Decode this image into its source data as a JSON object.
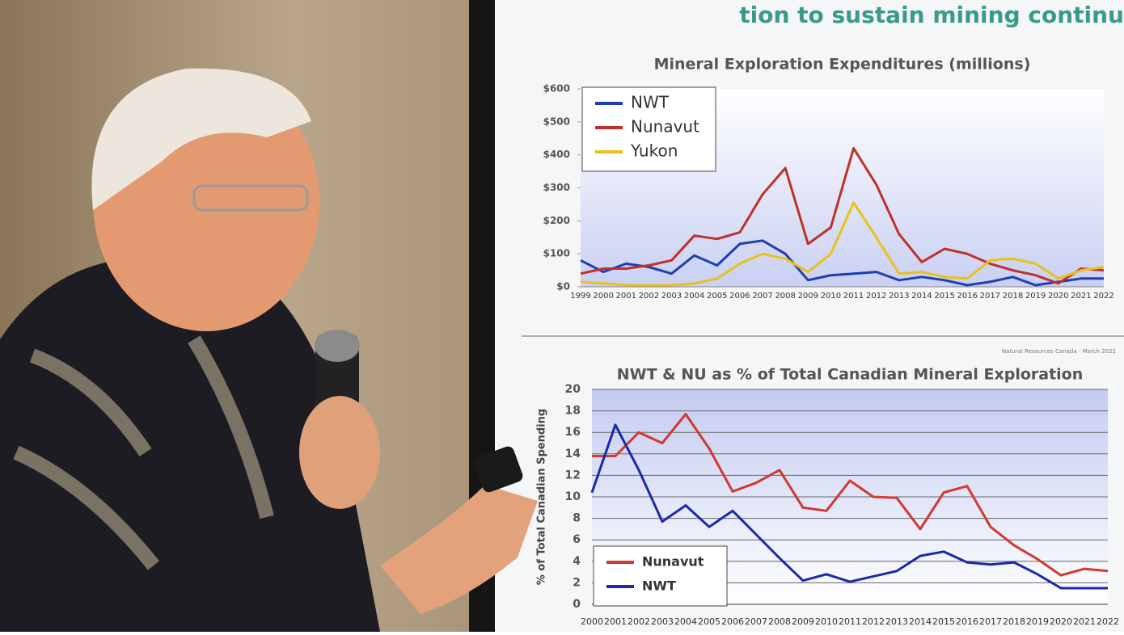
{
  "slide": {
    "heading": "tion to sustain mining continu",
    "source": "Natural Resources Canada - March 2022"
  },
  "chart_data": [
    {
      "type": "line",
      "title": "Mineral Exploration Expenditures (millions)",
      "categories": [
        "1999",
        "2000",
        "2001",
        "2002",
        "2003",
        "2004",
        "2005",
        "2006",
        "2007",
        "2008",
        "2009",
        "2010",
        "2011",
        "2012",
        "2013",
        "2014",
        "2015",
        "2016",
        "2017",
        "2018",
        "2019",
        "2020",
        "2021",
        "2022"
      ],
      "series": [
        {
          "name": "NWT",
          "color": "#1f3fb0",
          "values": [
            80,
            45,
            70,
            60,
            40,
            95,
            65,
            130,
            140,
            100,
            20,
            35,
            40,
            45,
            20,
            30,
            20,
            5,
            15,
            30,
            5,
            15,
            25,
            25
          ]
        },
        {
          "name": "Nunavut",
          "color": "#c0302a",
          "values": [
            40,
            55,
            55,
            65,
            80,
            155,
            145,
            165,
            280,
            360,
            130,
            180,
            420,
            310,
            160,
            75,
            115,
            100,
            70,
            50,
            35,
            10,
            55,
            50
          ]
        },
        {
          "name": "Yukon",
          "color": "#e8c21a",
          "values": [
            15,
            10,
            5,
            5,
            5,
            10,
            25,
            70,
            100,
            85,
            45,
            100,
            255,
            150,
            40,
            45,
            30,
            25,
            80,
            85,
            70,
            25,
            50,
            60
          ]
        }
      ],
      "ylim": [
        0,
        600
      ],
      "yticks": [
        {
          "value": 0,
          "label": "$0"
        },
        {
          "value": 100,
          "label": "$100"
        },
        {
          "value": 200,
          "label": "$200"
        },
        {
          "value": 300,
          "label": "$300"
        },
        {
          "value": 400,
          "label": "$400"
        },
        {
          "value": 500,
          "label": "$500"
        },
        {
          "value": 600,
          "label": "$600"
        }
      ],
      "grid": false,
      "legend": "upper left"
    },
    {
      "type": "line",
      "title": "NWT & NU as % of Total Canadian Mineral Exploration",
      "y_label": "% of Total Canadian Spending",
      "categories": [
        "2000",
        "2001",
        "2002",
        "2003",
        "2004",
        "2005",
        "2006",
        "2007",
        "2008",
        "2009",
        "2010",
        "2011",
        "2012",
        "2013",
        "2014",
        "2015",
        "2016",
        "2017",
        "2018",
        "2019",
        "2020",
        "2021",
        "2022"
      ],
      "series": [
        {
          "name": "Nunavut",
          "color": "#d03a30",
          "values": [
            13.8,
            13.8,
            16,
            15,
            17.7,
            14.5,
            10.5,
            11.3,
            12.5,
            9,
            8.7,
            11.5,
            10,
            9.9,
            7,
            10.4,
            11,
            7.2,
            5.5,
            4.2,
            2.7,
            3.3,
            3.1
          ]
        },
        {
          "name": "NWT",
          "color": "#1a2aa8",
          "values": [
            10.4,
            16.7,
            12.5,
            7.7,
            9.2,
            7.2,
            8.7,
            6.5,
            4.3,
            2.2,
            2.8,
            2.1,
            2.6,
            3.1,
            4.5,
            4.9,
            3.9,
            3.7,
            3.9,
            2.8,
            1.5,
            1.5,
            1.5
          ]
        }
      ],
      "ylim": [
        0,
        20
      ],
      "yticks": [
        0,
        2,
        4,
        6,
        8,
        10,
        12,
        14,
        16,
        18,
        20
      ],
      "grid": true,
      "legend": "lower left"
    }
  ]
}
